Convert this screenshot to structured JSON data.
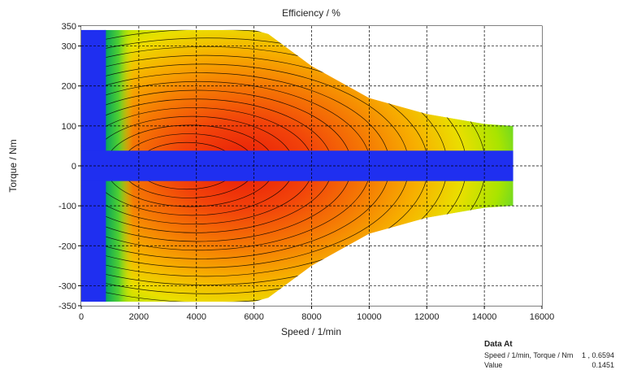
{
  "chart_data": {
    "type": "heatmap",
    "title": "Efficiency / %",
    "xlabel": "Speed / 1/min",
    "ylabel": "Torque / Nm",
    "xlim": [
      0,
      16000
    ],
    "ylim": [
      -350,
      350
    ],
    "x_ticks": [
      "0",
      "2000",
      "4000",
      "6000",
      "8000",
      "10000",
      "12000",
      "14000",
      "16000"
    ],
    "y_ticks": [
      "350",
      "300",
      "200",
      "100",
      "0",
      "-100",
      "-200",
      "-300",
      "-350"
    ],
    "grid": true,
    "colors": {
      "invalid": "#1f2ff0",
      "high": "#e81a08",
      "mid_high": "#f46a00",
      "mid": "#f7b000",
      "mid_low": "#e6e600",
      "low": "#90e000",
      "lowest": "#00b050",
      "outline": "#000000"
    },
    "envelope": {
      "speed": [
        800,
        1000,
        2000,
        4000,
        6000,
        6500,
        8000,
        10000,
        12000,
        14000,
        15000
      ],
      "max_torque": [
        340,
        340,
        340,
        340,
        340,
        330,
        250,
        170,
        130,
        105,
        100
      ]
    },
    "max_efficiency_region": {
      "speed": [
        2000,
        6000
      ],
      "torque": [
        -170,
        170
      ]
    },
    "contour_levels": 14
  },
  "readout": {
    "heading": "Data At",
    "row1_label": "Speed / 1/min, Torque / Nm",
    "row1_value": "1 , 0.6594",
    "row2_label": "Value",
    "row2_value": "0.1451"
  }
}
